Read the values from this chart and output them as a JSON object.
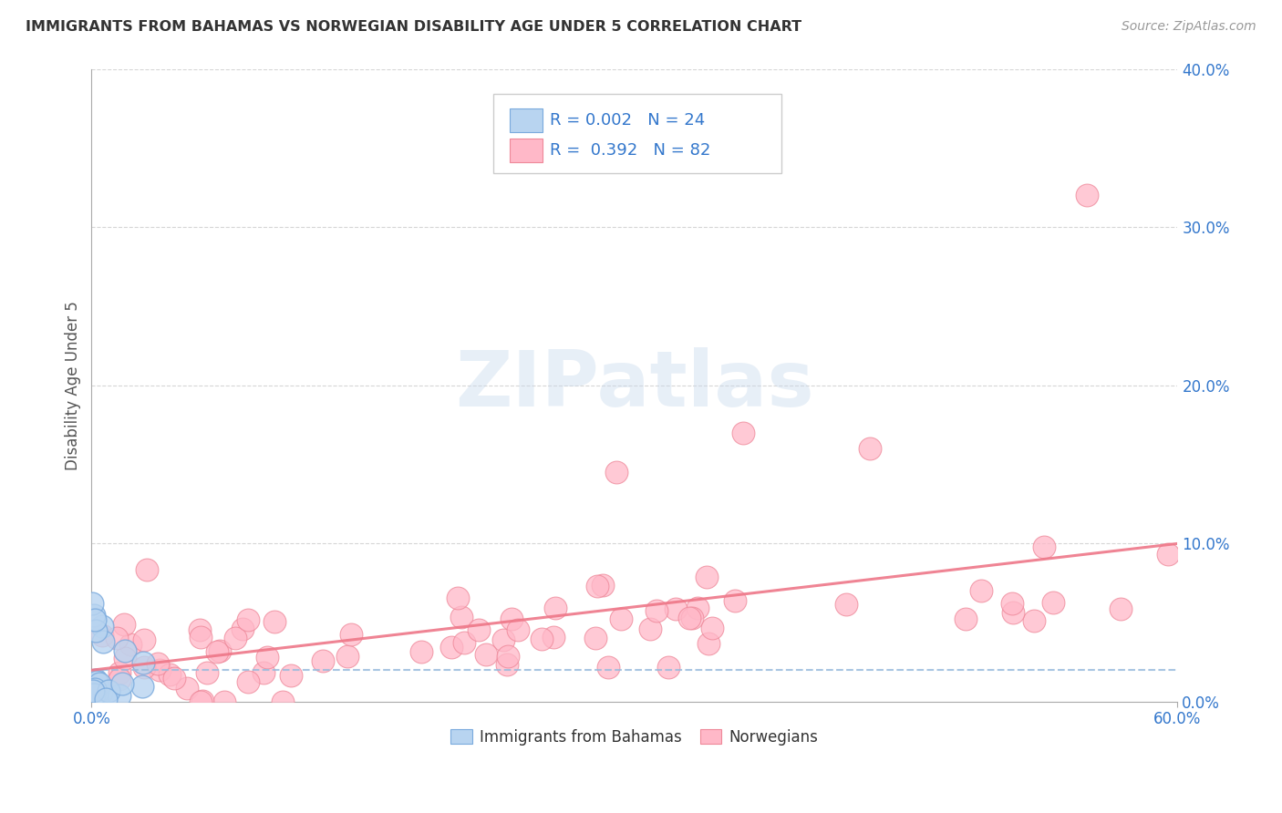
{
  "title": "IMMIGRANTS FROM BAHAMAS VS NORWEGIAN DISABILITY AGE UNDER 5 CORRELATION CHART",
  "source": "Source: ZipAtlas.com",
  "ylabel": "Disability Age Under 5",
  "xlim": [
    0.0,
    0.6
  ],
  "ylim": [
    0.0,
    0.4
  ],
  "xtick_positions": [
    0.0,
    0.6
  ],
  "xtick_labels": [
    "0.0%",
    "60.0%"
  ],
  "ytick_positions": [
    0.0,
    0.1,
    0.2,
    0.3,
    0.4
  ],
  "ytick_labels_right": [
    "0.0%",
    "10.0%",
    "20.0%",
    "30.0%",
    "40.0%"
  ],
  "background_color": "#ffffff",
  "grid_color": "#cccccc",
  "grid_style": "--",
  "series1_color": "#b8d4f0",
  "series1_edge": "#7aaadd",
  "series2_color": "#ffb8c8",
  "series2_edge": "#ee8899",
  "trendline1_color": "#99bbdd",
  "trendline2_color": "#ee7788",
  "watermark": "ZIPatlas",
  "watermark_color": "#c5d8ec",
  "series1_label": "Immigrants from Bahamas",
  "series2_label": "Norwegians",
  "tick_color": "#3377cc",
  "ylabel_color": "#555555",
  "title_color": "#333333",
  "source_color": "#999999",
  "legend_text_color": "#3377cc",
  "legend_bg": "#ffffff",
  "legend_edge": "#cccccc"
}
